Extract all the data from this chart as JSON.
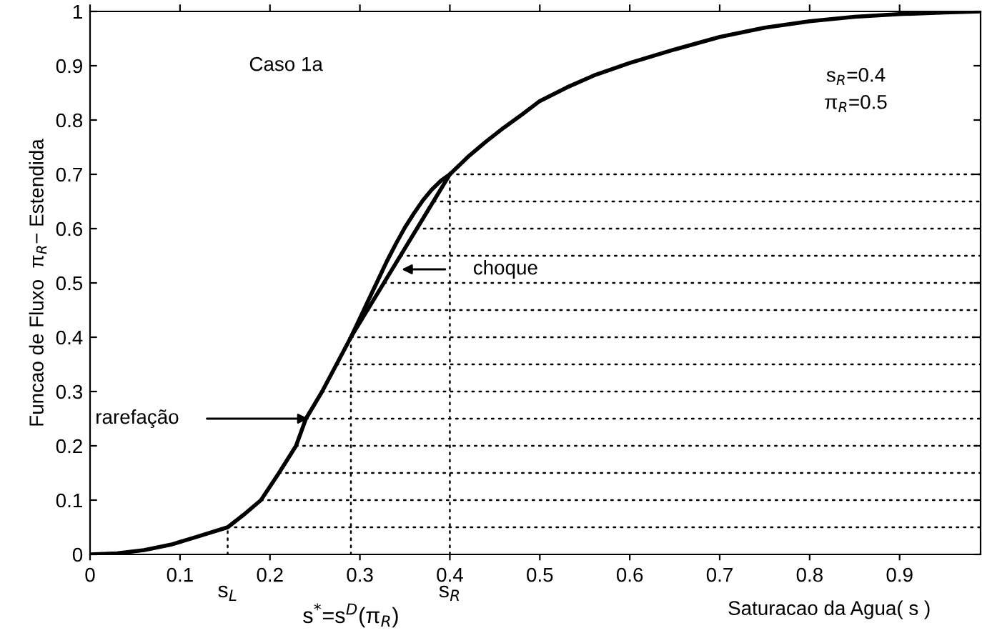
{
  "chart_data": {
    "type": "line",
    "xlabel": "Saturacao da Agua( s )",
    "ylabel": "Funcao de Fluxo  π$_{R}$− Estendida",
    "xlim": [
      0,
      0.99
    ],
    "ylim": [
      0,
      1
    ],
    "xticks": [
      0,
      0.1,
      0.2,
      0.3,
      0.4,
      0.5,
      0.6,
      0.7,
      0.8,
      0.9
    ],
    "yticks": [
      0,
      0.1,
      0.2,
      0.3,
      0.4,
      0.5,
      0.6,
      0.7,
      0.8,
      0.9,
      1
    ],
    "grid": false,
    "legend": false,
    "marker": "none",
    "series": [
      {
        "color": "#000000",
        "line_style": "solid",
        "x": [
          0,
          0.03,
          0.06,
          0.09,
          0.12,
          0.153,
          0.17,
          0.19,
          0.21,
          0.229,
          0.24,
          0.258,
          0.274,
          0.29,
          0.3,
          0.31,
          0.32,
          0.33,
          0.34,
          0.35,
          0.36,
          0.37,
          0.38,
          0.39,
          0.4,
          0.42,
          0.44,
          0.46,
          0.48,
          0.5,
          0.53,
          0.56,
          0.6,
          0.65,
          0.7,
          0.75,
          0.8,
          0.85,
          0.9,
          0.95,
          0.99
        ],
        "values": [
          0,
          0.002,
          0.008,
          0.018,
          0.033,
          0.05,
          0.072,
          0.1,
          0.15,
          0.2,
          0.25,
          0.3,
          0.35,
          0.4,
          0.435,
          0.47,
          0.505,
          0.54,
          0.572,
          0.602,
          0.628,
          0.652,
          0.672,
          0.688,
          0.7,
          0.732,
          0.76,
          0.786,
          0.81,
          0.835,
          0.86,
          0.882,
          0.905,
          0.93,
          0.953,
          0.97,
          0.982,
          0.99,
          0.995,
          0.998,
          1
        ]
      },
      {
        "color": "#000000",
        "line_style": "solid",
        "x": [
          0.29,
          0.4
        ],
        "values": [
          0.4,
          0.7
        ]
      },
      {
        "color": "#000000",
        "line_style": "dotted",
        "x": [
          0.153,
          0.99
        ],
        "values": [
          0.05,
          0.05
        ]
      },
      {
        "color": "#000000",
        "line_style": "dotted",
        "x": [
          0.19,
          0.99
        ],
        "values": [
          0.1,
          0.1
        ]
      },
      {
        "color": "#000000",
        "line_style": "dotted",
        "x": [
          0.21,
          0.99
        ],
        "values": [
          0.15,
          0.15
        ]
      },
      {
        "color": "#000000",
        "line_style": "dotted",
        "x": [
          0.229,
          0.99
        ],
        "values": [
          0.2,
          0.2
        ]
      },
      {
        "color": "#000000",
        "line_style": "dotted",
        "x": [
          0.24,
          0.99
        ],
        "values": [
          0.25,
          0.25
        ]
      },
      {
        "color": "#000000",
        "line_style": "dotted",
        "x": [
          0.258,
          0.99
        ],
        "values": [
          0.3,
          0.3
        ]
      },
      {
        "color": "#000000",
        "line_style": "dotted",
        "x": [
          0.274,
          0.99
        ],
        "values": [
          0.35,
          0.35
        ]
      },
      {
        "color": "#000000",
        "line_style": "dotted",
        "x": [
          0.29,
          0.99
        ],
        "values": [
          0.4,
          0.4
        ]
      },
      {
        "color": "#000000",
        "line_style": "dotted",
        "x": [
          0.308,
          0.99
        ],
        "values": [
          0.45,
          0.45
        ]
      },
      {
        "color": "#000000",
        "line_style": "dotted",
        "x": [
          0.327,
          0.99
        ],
        "values": [
          0.5,
          0.5
        ]
      },
      {
        "color": "#000000",
        "line_style": "dotted",
        "x": [
          0.345,
          0.99
        ],
        "values": [
          0.55,
          0.55
        ]
      },
      {
        "color": "#000000",
        "line_style": "dotted",
        "x": [
          0.363,
          0.99
        ],
        "values": [
          0.6,
          0.6
        ]
      },
      {
        "color": "#000000",
        "line_style": "dotted",
        "x": [
          0.382,
          0.99
        ],
        "values": [
          0.65,
          0.65
        ]
      },
      {
        "color": "#000000",
        "line_style": "dotted",
        "x": [
          0.4,
          0.99
        ],
        "values": [
          0.7,
          0.7
        ]
      },
      {
        "color": "#000000",
        "line_style": "dotted",
        "x": [
          0.153,
          0.153
        ],
        "values": [
          0,
          0.05
        ]
      },
      {
        "color": "#000000",
        "line_style": "dotted",
        "x": [
          0.29,
          0.29
        ],
        "values": [
          0,
          0.4
        ]
      },
      {
        "color": "#000000",
        "line_style": "dotted",
        "x": [
          0.4,
          0.4
        ],
        "values": [
          0,
          0.7
        ]
      }
    ],
    "annotations": [
      "Caso 1a",
      "s$_{R}$=0.4",
      "π$_{R}$=0.5",
      "choque",
      "rarefação",
      {
        "text": "s$_{L}$",
        "x": 0.153,
        "y": 0
      },
      {
        "text": "s$^{*}$=s$^{D}$(π$_{R}$)",
        "x": 0.29,
        "y": 0
      },
      {
        "text": "s$_{R}$",
        "x": 0.4,
        "y": 0
      }
    ]
  }
}
